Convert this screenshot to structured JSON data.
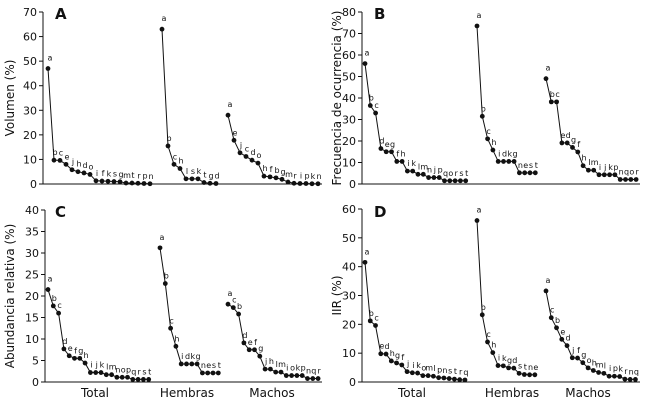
{
  "chart_data": [
    {
      "type": "line",
      "panel": "A",
      "ylabel": "Volumen (%)",
      "ylim": [
        0,
        70
      ],
      "ystep": 10,
      "categories": [
        "Total",
        "Hembras",
        "Machos"
      ],
      "show_categories": false,
      "groups": [
        {
          "labels": [
            "a",
            "b",
            "c",
            "e",
            "j",
            "h",
            "d",
            "o",
            "i",
            "f",
            "k",
            "s",
            "g",
            "m",
            "t",
            "r",
            "p",
            "n"
          ],
          "values": [
            47,
            9.7,
            9.6,
            8,
            5.8,
            5,
            4.5,
            3.9,
            1.3,
            1.2,
            1.1,
            1,
            0.9,
            0.4,
            0.4,
            0.3,
            0.2,
            0.1
          ]
        },
        {
          "labels": [
            "a",
            "b",
            "c",
            "h",
            "l",
            "s",
            "k",
            "t",
            "g",
            "d"
          ],
          "values": [
            63,
            15.5,
            8,
            6.3,
            2.1,
            2.1,
            2.1,
            0.6,
            0.3,
            0.2
          ]
        },
        {
          "labels": [
            "a",
            "e",
            "j",
            "c",
            "d",
            "o",
            "h",
            "f",
            "b",
            "g",
            "m",
            "r",
            "i",
            "p",
            "k",
            "n"
          ],
          "values": [
            28,
            17.8,
            12.7,
            11.2,
            9.7,
            8.5,
            3.2,
            2.9,
            2.5,
            1.9,
            0.8,
            0.3,
            0.2,
            0.2,
            0.1,
            0.1
          ]
        }
      ]
    },
    {
      "type": "line",
      "panel": "B",
      "ylabel": "Frecuencia de ocurrencia (%)",
      "ylim": [
        0,
        80
      ],
      "ystep": 10,
      "categories": [
        "Total",
        "Hembras",
        "Machos"
      ],
      "show_categories": false,
      "groups": [
        {
          "labels": [
            "a",
            "b",
            "c",
            "d",
            "e",
            "g",
            "f",
            "h",
            "i",
            "k",
            "l",
            "m",
            "n",
            "j",
            "p",
            "q",
            "o",
            "r",
            "s",
            "t"
          ],
          "values": [
            56,
            36.5,
            33,
            16.5,
            15,
            15,
            10.5,
            10.5,
            6,
            6,
            4.5,
            4.5,
            3,
            3,
            3,
            1.5,
            1.5,
            1.5,
            1.5,
            1.5
          ]
        },
        {
          "labels": [
            "a",
            "b",
            "c",
            "h",
            "i",
            "d",
            "k",
            "g",
            "n",
            "e",
            "s",
            "t"
          ],
          "values": [
            73.5,
            31.5,
            21,
            15.8,
            10.5,
            10.5,
            10.5,
            10.5,
            5.2,
            5.2,
            5.2,
            5.2
          ]
        },
        {
          "labels": [
            "a",
            "b",
            "c",
            "e",
            "d",
            "g",
            "f",
            "h",
            "l",
            "m",
            "i",
            "j",
            "k",
            "p",
            "n",
            "q",
            "o",
            "r"
          ],
          "values": [
            49,
            38.2,
            38.2,
            19.1,
            19.1,
            17,
            14.9,
            8.5,
            6.4,
            6.4,
            4.3,
            4.3,
            4.3,
            4.3,
            2.1,
            2.1,
            2.1,
            2.1
          ]
        }
      ]
    },
    {
      "type": "line",
      "panel": "C",
      "ylabel": "Abundancia relativa (%)",
      "ylim": [
        0,
        40
      ],
      "ystep": 5,
      "categories": [
        "Total",
        "Hembras",
        "Machos"
      ],
      "show_categories": true,
      "groups": [
        {
          "labels": [
            "a",
            "b",
            "c",
            "d",
            "e",
            "f",
            "g",
            "h",
            "i",
            "j",
            "k",
            "l",
            "m",
            "n",
            "o",
            "p",
            "q",
            "r",
            "s",
            "t"
          ],
          "values": [
            21.5,
            17.7,
            16,
            7.7,
            6.1,
            5.5,
            5.5,
            4.4,
            2.2,
            2.2,
            2.2,
            1.7,
            1.7,
            1.1,
            1.1,
            1.1,
            0.6,
            0.6,
            0.6,
            0.6
          ]
        },
        {
          "labels": [
            "a",
            "b",
            "c",
            "h",
            "i",
            "d",
            "k",
            "g",
            "n",
            "e",
            "s",
            "t"
          ],
          "values": [
            31.2,
            22.9,
            12.5,
            8.3,
            4.2,
            4.2,
            4.2,
            4.2,
            2.1,
            2.1,
            2.1,
            2.1
          ]
        },
        {
          "labels": [
            "a",
            "c",
            "b",
            "d",
            "e",
            "f",
            "g",
            "j",
            "h",
            "l",
            "m",
            "i",
            "o",
            "k",
            "p",
            "n",
            "q",
            "r"
          ],
          "values": [
            18.1,
            17.3,
            15.8,
            9.1,
            7.5,
            7.5,
            6,
            3,
            3,
            2.3,
            2.3,
            1.5,
            1.5,
            1.5,
            1.5,
            0.8,
            0.8,
            0.8
          ]
        }
      ]
    },
    {
      "type": "line",
      "panel": "D",
      "ylabel": "IIR (%)",
      "ylim": [
        0,
        60
      ],
      "ystep": 10,
      "categories": [
        "Total",
        "Hembras",
        "Machos"
      ],
      "show_categories": true,
      "groups": [
        {
          "labels": [
            "a",
            "b",
            "c",
            "e",
            "d",
            "h",
            "g",
            "f",
            "j",
            "i",
            "k",
            "o",
            "m",
            "l",
            "p",
            "n",
            "s",
            "t",
            "r",
            "q"
          ],
          "values": [
            41.5,
            21.2,
            19.6,
            9.8,
            9.7,
            7.3,
            6.6,
            5.9,
            3.6,
            3.2,
            3.1,
            2.2,
            2.2,
            2,
            1.5,
            1.4,
            1.2,
            1,
            0.8,
            0.7
          ]
        },
        {
          "labels": [
            "a",
            "b",
            "c",
            "h",
            "i",
            "k",
            "g",
            "d",
            "s",
            "t",
            "n",
            "e"
          ],
          "values": [
            56,
            23.3,
            13.9,
            10.2,
            5.7,
            5.6,
            4.9,
            4.8,
            3,
            2.6,
            2.5,
            2.5
          ]
        },
        {
          "labels": [
            "a",
            "c",
            "b",
            "e",
            "d",
            "j",
            "f",
            "g",
            "o",
            "h",
            "m",
            "l",
            "i",
            "p",
            "k",
            "r",
            "n",
            "q"
          ],
          "values": [
            31.6,
            22.3,
            18.8,
            14.8,
            12.6,
            8.4,
            8.3,
            6.7,
            4.9,
            4,
            3.3,
            3,
            2,
            2,
            1.9,
            1,
            0.9,
            0.9
          ]
        }
      ]
    }
  ]
}
